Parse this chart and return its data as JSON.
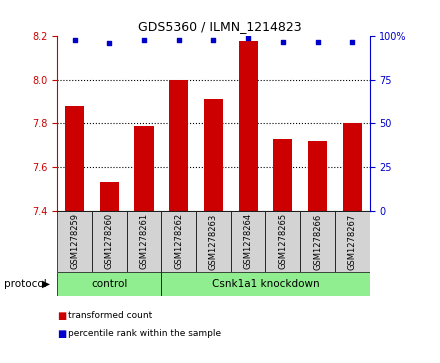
{
  "title": "GDS5360 / ILMN_1214823",
  "samples": [
    "GSM1278259",
    "GSM1278260",
    "GSM1278261",
    "GSM1278262",
    "GSM1278263",
    "GSM1278264",
    "GSM1278265",
    "GSM1278266",
    "GSM1278267"
  ],
  "bar_values": [
    7.88,
    7.53,
    7.79,
    8.0,
    7.91,
    8.18,
    7.73,
    7.72,
    7.8
  ],
  "percentile_values": [
    98,
    96,
    98,
    98,
    98,
    99,
    97,
    97,
    97
  ],
  "bar_color": "#cc0000",
  "dot_color": "#0000cc",
  "ylim_left": [
    7.4,
    8.2
  ],
  "ylim_right": [
    0,
    100
  ],
  "yticks_left": [
    7.4,
    7.6,
    7.8,
    8.0,
    8.2
  ],
  "yticks_right": [
    0,
    25,
    50,
    75,
    100
  ],
  "ytick_labels_right": [
    "0",
    "25",
    "50",
    "75",
    "100%"
  ],
  "grid_lines": [
    7.6,
    7.8,
    8.0
  ],
  "n_control": 3,
  "n_knockdown": 6,
  "control_label": "control",
  "knockdown_label": "Csnk1a1 knockdown",
  "protocol_label": "protocol",
  "legend_bar_label": "transformed count",
  "legend_dot_label": "percentile rank within the sample",
  "bg_color": "#d3d3d3",
  "green_color": "#90ee90",
  "bar_bottom": 7.4,
  "bar_width": 0.55,
  "title_fontsize": 9,
  "tick_fontsize": 7,
  "label_fontsize": 6
}
